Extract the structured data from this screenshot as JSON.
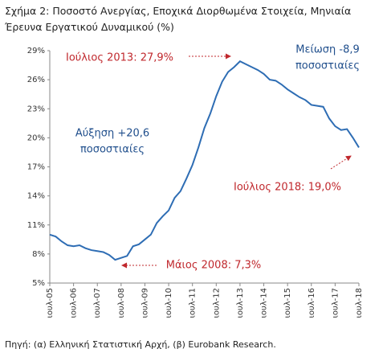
{
  "chart_data": {
    "type": "line",
    "title": "Σχήμα 2: Ποσοστό Ανεργίας, Εποχικά Διορθωμένα Στοιχεία, Μηνιαία Έρευνα Εργατικού Δυναμικού (%)",
    "source": "Πηγή: (α) Ελληνική Στατιστική Αρχή, (β) Eurobank Research.",
    "categories": [
      "ιουλ-05",
      null,
      null,
      null,
      "ιουλ-06",
      null,
      null,
      null,
      "ιουλ-07",
      null,
      null,
      null,
      "ιουλ-08",
      null,
      null,
      null,
      "ιουλ-09",
      null,
      null,
      null,
      "ιουλ-10",
      null,
      null,
      null,
      "ιουλ-11",
      null,
      null,
      null,
      "ιουλ-12",
      null,
      null,
      null,
      "ιουλ-13",
      null,
      null,
      null,
      "ιουλ-14",
      null,
      null,
      null,
      "ιουλ-15",
      null,
      null,
      null,
      "ιουλ-16",
      null,
      null,
      null,
      "ιουλ-17",
      null,
      null,
      null,
      "ιουλ-18"
    ],
    "series": [
      {
        "name": "Ποσοστό Ανεργίας",
        "color": "#2e6db4",
        "values": [
          10.0,
          9.8,
          9.3,
          8.9,
          8.8,
          8.9,
          8.6,
          8.4,
          8.3,
          8.2,
          7.9,
          7.4,
          7.6,
          7.8,
          8.8,
          9.0,
          9.5,
          10.0,
          11.2,
          11.9,
          12.5,
          13.8,
          14.5,
          15.8,
          17.2,
          19.0,
          21.0,
          22.5,
          24.3,
          25.8,
          26.8,
          27.3,
          27.9,
          27.6,
          27.3,
          27.0,
          26.6,
          26.0,
          25.9,
          25.5,
          25.0,
          24.6,
          24.2,
          23.9,
          23.4,
          23.3,
          23.2,
          22.0,
          21.2,
          20.8,
          20.9,
          20.0,
          19.0
        ]
      }
    ],
    "ylim": [
      5,
      29
    ],
    "yticks": [
      {
        "value": 5,
        "label": "5%"
      },
      {
        "value": 8,
        "label": "8%"
      },
      {
        "value": 11,
        "label": "11%"
      },
      {
        "value": 14,
        "label": "14%"
      },
      {
        "value": 17,
        "label": "17%"
      },
      {
        "value": 20,
        "label": "20%"
      },
      {
        "value": 23,
        "label": "23%"
      },
      {
        "value": 26,
        "label": "26%"
      },
      {
        "value": 29,
        "label": "29%"
      }
    ],
    "grid": false,
    "annotations": [
      {
        "lines": [
          "Ιούλιος 2013: 27,9%"
        ],
        "color": "#c0282d"
      },
      {
        "lines": [
          "Μείωση -8,9",
          "ποσοστιαίες"
        ],
        "color": "#1f4e8c"
      },
      {
        "lines": [
          "Αύξηση +20,6",
          "ποσοστιαίες"
        ],
        "color": "#1f4e8c"
      },
      {
        "lines": [
          "Ιούλιος 2018: 19,0%"
        ],
        "color": "#c0282d"
      },
      {
        "lines": [
          "Μάιος 2008: 7,3%"
        ],
        "color": "#c0282d"
      }
    ]
  }
}
